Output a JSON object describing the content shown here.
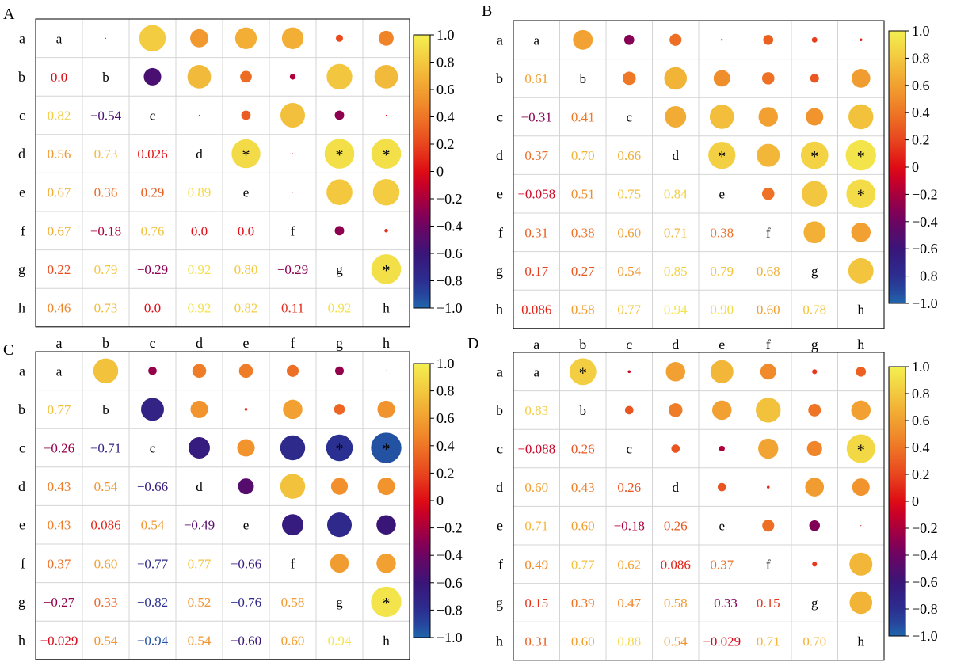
{
  "chart_data": [
    {
      "panel": "A",
      "type": "heatmap",
      "labels": [
        "a",
        "b",
        "c",
        "d",
        "e",
        "f",
        "g",
        "h"
      ],
      "lower": [
        [
          null,
          null,
          null,
          null,
          null,
          null,
          null,
          null
        ],
        [
          "0.0",
          null,
          null,
          null,
          null,
          null,
          null,
          null
        ],
        [
          "0.82",
          "−0.54",
          null,
          null,
          null,
          null,
          null,
          null
        ],
        [
          "0.56",
          "0.73",
          "0.026",
          null,
          null,
          null,
          null,
          null
        ],
        [
          "0.67",
          "0.36",
          "0.29",
          "0.89",
          null,
          null,
          null,
          null
        ],
        [
          "0.67",
          "−0.18",
          "0.76",
          "0.0",
          "0.0",
          null,
          null,
          null
        ],
        [
          "0.22",
          "0.79",
          "−0.29",
          "0.92",
          "0.80",
          "−0.29",
          null,
          null
        ],
        [
          "0.46",
          "0.73",
          "0.0",
          "0.92",
          "0.82",
          "0.11",
          "0.92",
          null
        ]
      ],
      "upper": [
        [
          null,
          0.0,
          0.82,
          0.56,
          0.67,
          0.67,
          0.22,
          0.46
        ],
        [
          null,
          null,
          -0.54,
          0.73,
          0.36,
          -0.18,
          0.79,
          0.73
        ],
        [
          null,
          null,
          null,
          0.026,
          0.29,
          0.76,
          -0.29,
          0.0
        ],
        [
          null,
          null,
          null,
          null,
          0.89,
          0.0,
          0.92,
          0.92
        ],
        [
          null,
          null,
          null,
          null,
          null,
          0.0,
          0.8,
          0.82
        ],
        [
          null,
          null,
          null,
          null,
          null,
          null,
          -0.29,
          0.11
        ],
        [
          null,
          null,
          null,
          null,
          null,
          null,
          null,
          0.92
        ],
        [
          null,
          null,
          null,
          null,
          null,
          null,
          null,
          null
        ]
      ],
      "significant": [
        [
          3,
          4
        ],
        [
          3,
          6
        ],
        [
          3,
          7
        ],
        [
          6,
          7
        ]
      ],
      "colorbar_ticks": [
        "1.0",
        "0.8",
        "0.6",
        "0.4",
        "0.2",
        "0",
        "−0.2",
        "−0.4",
        "−0.6",
        "−0.8",
        "−1.0"
      ],
      "vmin": -1,
      "vmax": 1
    },
    {
      "panel": "B",
      "type": "heatmap",
      "labels": [
        "a",
        "b",
        "c",
        "d",
        "e",
        "f",
        "g",
        "h"
      ],
      "lower": [
        [
          null,
          null,
          null,
          null,
          null,
          null,
          null,
          null
        ],
        [
          "0.61",
          null,
          null,
          null,
          null,
          null,
          null,
          null
        ],
        [
          "−0.31",
          "0.41",
          null,
          null,
          null,
          null,
          null,
          null
        ],
        [
          "0.37",
          "0.70",
          "0.66",
          null,
          null,
          null,
          null,
          null
        ],
        [
          "−0.058",
          "0.51",
          "0.75",
          "0.84",
          null,
          null,
          null,
          null
        ],
        [
          "0.31",
          "0.38",
          "0.60",
          "0.71",
          "0.38",
          null,
          null,
          null
        ],
        [
          "0.17",
          "0.27",
          "0.54",
          "0.85",
          "0.79",
          "0.68",
          null,
          null
        ],
        [
          "0.086",
          "0.58",
          "0.77",
          "0.94",
          "0.90",
          "0.60",
          "0.78",
          null
        ]
      ],
      "upper": [
        [
          null,
          0.61,
          -0.31,
          0.37,
          -0.058,
          0.31,
          0.17,
          0.086
        ],
        [
          null,
          null,
          0.41,
          0.7,
          0.51,
          0.38,
          0.27,
          0.58
        ],
        [
          null,
          null,
          null,
          0.66,
          0.75,
          0.6,
          0.54,
          0.77
        ],
        [
          null,
          null,
          null,
          null,
          0.84,
          0.71,
          0.85,
          0.94
        ],
        [
          null,
          null,
          null,
          null,
          null,
          0.38,
          0.79,
          0.9
        ],
        [
          null,
          null,
          null,
          null,
          null,
          null,
          0.68,
          0.6
        ],
        [
          null,
          null,
          null,
          null,
          null,
          null,
          null,
          0.78
        ],
        [
          null,
          null,
          null,
          null,
          null,
          null,
          null,
          null
        ]
      ],
      "significant": [
        [
          3,
          4
        ],
        [
          3,
          6
        ],
        [
          3,
          7
        ],
        [
          4,
          7
        ]
      ],
      "colorbar_ticks": [
        "1.0",
        "0.8",
        "0.6",
        "0.4",
        "0.2",
        "0",
        "−0.2",
        "−0.4",
        "−0.6",
        "−0.8",
        "−1.0"
      ],
      "vmin": -1,
      "vmax": 1
    },
    {
      "panel": "C",
      "type": "heatmap",
      "labels": [
        "a",
        "b",
        "c",
        "d",
        "e",
        "f",
        "g",
        "h"
      ],
      "lower": [
        [
          null,
          null,
          null,
          null,
          null,
          null,
          null,
          null
        ],
        [
          "0.77",
          null,
          null,
          null,
          null,
          null,
          null,
          null
        ],
        [
          "−0.26",
          "−0.71",
          null,
          null,
          null,
          null,
          null,
          null
        ],
        [
          "0.43",
          "0.54",
          "−0.66",
          null,
          null,
          null,
          null,
          null
        ],
        [
          "0.43",
          "0.086",
          "0.54",
          "−0.49",
          null,
          null,
          null,
          null
        ],
        [
          "0.37",
          "0.60",
          "−0.77",
          "0.77",
          "−0.66",
          null,
          null,
          null
        ],
        [
          "−0.27",
          "0.33",
          "−0.82",
          "0.52",
          "−0.76",
          "0.58",
          null,
          null
        ],
        [
          "−0.029",
          "0.54",
          "−0.94",
          "0.54",
          "−0.60",
          "0.60",
          "0.94",
          null
        ]
      ],
      "upper": [
        [
          null,
          0.77,
          -0.26,
          0.43,
          0.43,
          0.37,
          -0.27,
          -0.029
        ],
        [
          null,
          null,
          -0.71,
          0.54,
          0.086,
          0.6,
          0.33,
          0.54
        ],
        [
          null,
          null,
          null,
          -0.66,
          0.54,
          -0.77,
          -0.82,
          -0.94
        ],
        [
          null,
          null,
          null,
          null,
          -0.49,
          0.77,
          0.52,
          0.54
        ],
        [
          null,
          null,
          null,
          null,
          null,
          -0.66,
          -0.76,
          -0.6
        ],
        [
          null,
          null,
          null,
          null,
          null,
          null,
          0.58,
          0.6
        ],
        [
          null,
          null,
          null,
          null,
          null,
          null,
          null,
          0.94
        ],
        [
          null,
          null,
          null,
          null,
          null,
          null,
          null,
          null
        ]
      ],
      "significant": [
        [
          2,
          6
        ],
        [
          2,
          7
        ],
        [
          6,
          7
        ]
      ],
      "colorbar_ticks": [
        "1.0",
        "0.8",
        "0.6",
        "0.4",
        "0.2",
        "0",
        "−0.2",
        "−0.4",
        "−0.6",
        "−0.8",
        "−1.0"
      ],
      "vmin": -1,
      "vmax": 1
    },
    {
      "panel": "D",
      "type": "heatmap",
      "labels": [
        "a",
        "b",
        "c",
        "d",
        "e",
        "f",
        "g",
        "h"
      ],
      "lower": [
        [
          null,
          null,
          null,
          null,
          null,
          null,
          null,
          null
        ],
        [
          "0.83",
          null,
          null,
          null,
          null,
          null,
          null,
          null
        ],
        [
          "−0.088",
          "0.26",
          null,
          null,
          null,
          null,
          null,
          null
        ],
        [
          "0.60",
          "0.43",
          "0.26",
          null,
          null,
          null,
          null,
          null
        ],
        [
          "0.71",
          "0.60",
          "−0.18",
          "0.26",
          null,
          null,
          null,
          null
        ],
        [
          "0.49",
          "0.77",
          "0.62",
          "0.086",
          "0.37",
          null,
          null,
          null
        ],
        [
          "0.15",
          "0.39",
          "0.47",
          "0.58",
          "−0.33",
          "0.15",
          null,
          null
        ],
        [
          "0.31",
          "0.60",
          "0.88",
          "0.54",
          "−0.029",
          "0.71",
          "0.70",
          null
        ]
      ],
      "upper": [
        [
          null,
          0.83,
          -0.088,
          0.6,
          0.71,
          0.49,
          0.15,
          0.31
        ],
        [
          null,
          null,
          0.26,
          0.43,
          0.6,
          0.77,
          0.39,
          0.6
        ],
        [
          null,
          null,
          null,
          0.26,
          -0.18,
          0.62,
          0.47,
          0.88
        ],
        [
          null,
          null,
          null,
          null,
          0.26,
          0.086,
          0.58,
          0.54
        ],
        [
          null,
          null,
          null,
          null,
          null,
          0.37,
          -0.33,
          -0.029
        ],
        [
          null,
          null,
          null,
          null,
          null,
          null,
          0.15,
          0.71
        ],
        [
          null,
          null,
          null,
          null,
          null,
          null,
          null,
          0.7
        ],
        [
          null,
          null,
          null,
          null,
          null,
          null,
          null,
          null
        ]
      ],
      "significant": [
        [
          0,
          1
        ],
        [
          2,
          7
        ]
      ],
      "colorbar_ticks": [
        "1.0",
        "0.8",
        "0.6",
        "0.4",
        "0.2",
        "0",
        "−0.2",
        "−0.4",
        "−0.6",
        "−0.8",
        "−1.0"
      ],
      "vmin": -1,
      "vmax": 1
    }
  ]
}
